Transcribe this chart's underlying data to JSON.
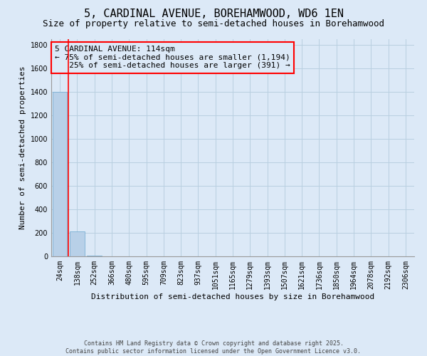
{
  "title": "5, CARDINAL AVENUE, BOREHAMWOOD, WD6 1EN",
  "subtitle": "Size of property relative to semi-detached houses in Borehamwood",
  "xlabel": "Distribution of semi-detached houses by size in Borehamwood",
  "ylabel": "Number of semi-detached properties",
  "categories": [
    "24sqm",
    "138sqm",
    "252sqm",
    "366sqm",
    "480sqm",
    "595sqm",
    "709sqm",
    "823sqm",
    "937sqm",
    "1051sqm",
    "1165sqm",
    "1279sqm",
    "1393sqm",
    "1507sqm",
    "1621sqm",
    "1736sqm",
    "1850sqm",
    "1964sqm",
    "2078sqm",
    "2192sqm",
    "2306sqm"
  ],
  "values": [
    1400,
    210,
    8,
    2,
    1,
    0,
    0,
    0,
    0,
    0,
    0,
    0,
    0,
    0,
    0,
    0,
    0,
    0,
    0,
    0,
    0
  ],
  "ylim": [
    0,
    1850
  ],
  "yticks": [
    0,
    200,
    400,
    600,
    800,
    1000,
    1200,
    1400,
    1600,
    1800
  ],
  "bar_color": "#b8d0e8",
  "bar_edge_color": "#7aafd4",
  "background_color": "#dce9f7",
  "grid_color": "#b8cfe0",
  "vline_color": "red",
  "annotation_line1": "5 CARDINAL AVENUE: 114sqm",
  "annotation_line2": "← 75% of semi-detached houses are smaller (1,194)",
  "annotation_line3": "   25% of semi-detached houses are larger (391) →",
  "annotation_box_color": "red",
  "footer_text": "Contains HM Land Registry data © Crown copyright and database right 2025.\nContains public sector information licensed under the Open Government Licence v3.0.",
  "title_fontsize": 11,
  "subtitle_fontsize": 9,
  "ylabel_fontsize": 8,
  "xlabel_fontsize": 8,
  "tick_fontsize": 7,
  "annotation_fontsize": 8,
  "footer_fontsize": 6
}
